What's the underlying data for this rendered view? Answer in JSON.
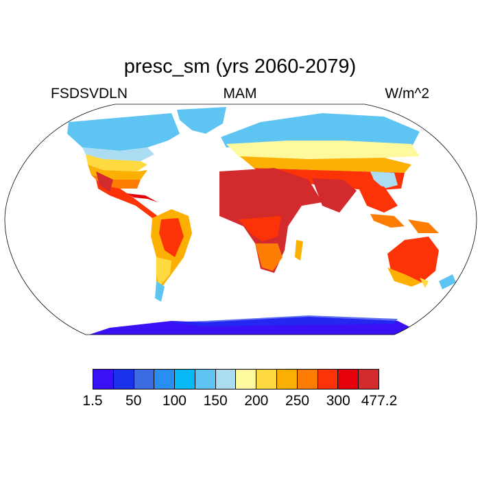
{
  "title": "presc_sm (yrs 2060-2079)",
  "left_label": "FSDSVDLN",
  "center_label": "MAM",
  "right_label": "W/m^2",
  "legend": {
    "colors": [
      "#3a10f5",
      "#1a32ec",
      "#3d6be2",
      "#2a8ef0",
      "#07b8f6",
      "#5ec5f2",
      "#acdcf1",
      "#fff99e",
      "#fed93f",
      "#fdb004",
      "#fd7c03",
      "#fc3306",
      "#e5000a",
      "#d22a2d"
    ],
    "tick_labels": [
      "1.5",
      "50",
      "100",
      "150",
      "200",
      "250",
      "300",
      "477.2"
    ]
  }
}
